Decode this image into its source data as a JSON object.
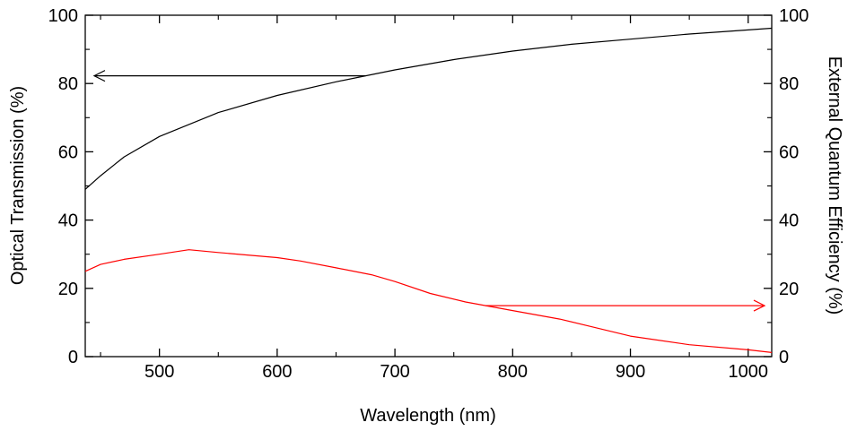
{
  "chart_data": {
    "type": "line",
    "xlabel": "Wavelength (nm)",
    "ylabel_left": "Optical Transmission (%)",
    "ylabel_right": "External Quantum Efficiency (%)",
    "xlim": [
      437,
      1020
    ],
    "ylim_left": [
      0,
      100
    ],
    "ylim_right": [
      0,
      100
    ],
    "x_ticks": [
      500,
      600,
      700,
      800,
      900,
      1000
    ],
    "y_ticks": [
      0,
      20,
      40,
      60,
      80,
      100
    ],
    "grid": false,
    "series": [
      {
        "axis": "left",
        "color": "#000000",
        "arrow_direction": "left",
        "x": [
          437,
          450,
          470,
          500,
          550,
          600,
          650,
          700,
          750,
          800,
          850,
          900,
          950,
          1000,
          1020
        ],
        "values": [
          49,
          53,
          58.5,
          64.5,
          71.5,
          76.5,
          80.5,
          84,
          87,
          89.5,
          91.5,
          93,
          94.5,
          95.7,
          96.2
        ]
      },
      {
        "axis": "right",
        "color": "#ff0000",
        "arrow_direction": "right",
        "x": [
          437,
          450,
          470,
          500,
          525,
          550,
          600,
          620,
          650,
          680,
          700,
          730,
          760,
          800,
          840,
          870,
          900,
          950,
          1000,
          1020
        ],
        "values": [
          25,
          27,
          28.5,
          30,
          31.3,
          30.5,
          29,
          28,
          26,
          24,
          22,
          18.5,
          16,
          13.5,
          11,
          8.5,
          6,
          3.5,
          2,
          1.2
        ]
      }
    ]
  },
  "colors": {
    "left_series": "#000000",
    "right_series": "#ff0000",
    "axis": "#000000"
  }
}
